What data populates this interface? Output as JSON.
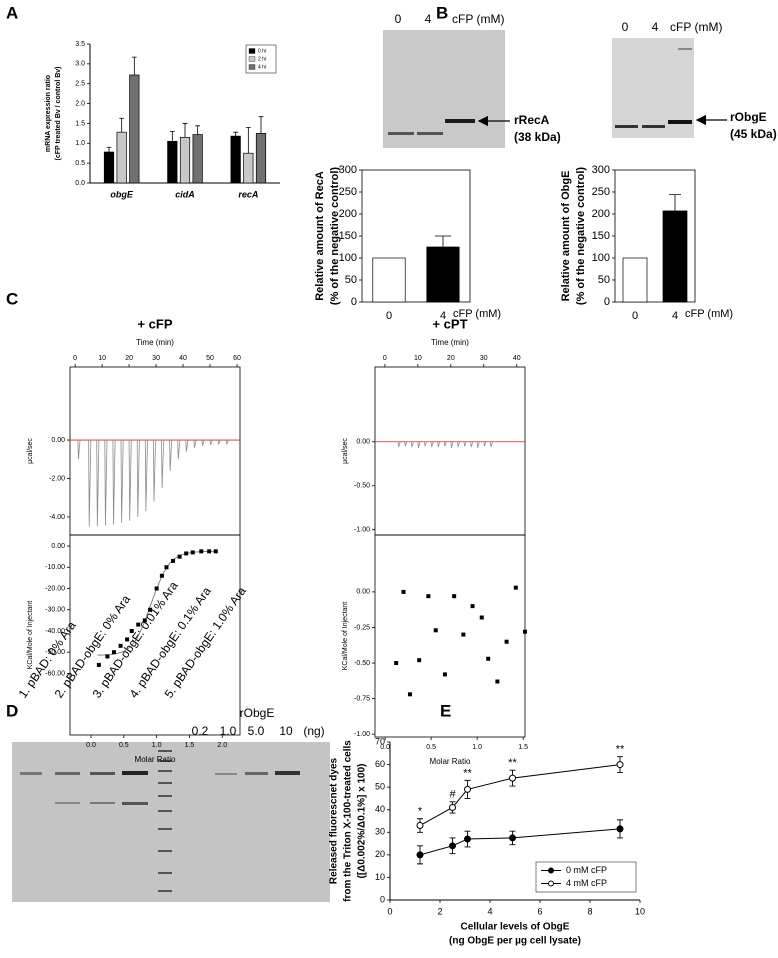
{
  "figure": {
    "panel_labels": [
      "A",
      "B",
      "C",
      "D",
      "E"
    ]
  },
  "blots": [
    {
      "lanes": [
        "0",
        "4",
        "cFP (mM)"
      ],
      "band": [
        "rRecA",
        "(38 kDa)"
      ]
    },
    {
      "lanes": [
        "0",
        "4",
        "cFP (mM)"
      ],
      "band": [
        "rObgE",
        "(45 kDa)"
      ]
    }
  ],
  "western": {
    "lanes": [
      "1. pBAD: 0% Ara",
      "2. pBAD-obgE: 0% Ara",
      "3. pBAD-obgE: 0.01% Ara",
      "4. pBAD-obgE: 0.1% Ara",
      "5. pBAD-obgE: 1.0% Ara"
    ],
    "standard": "rObgE",
    "standard_lanes": [
      "0.2",
      "1.0",
      "5.0",
      "10"
    ],
    "unit": "(ng)"
  },
  "chart_data": [
    {
      "type": "bar",
      "ylabel": [
        "mRNA expression ratio",
        "(cFP treated Bv / control Bv)"
      ],
      "categories": [
        "obgE",
        "cidA",
        "recA"
      ],
      "category_style": "italic",
      "series": [
        {
          "name": "0 hr",
          "color": "#000000",
          "values": [
            0.78,
            1.05,
            1.18
          ],
          "errors": [
            0.12,
            0.25,
            0.1
          ]
        },
        {
          "name": "2 hr",
          "color": "#c8c8c8",
          "values": [
            1.28,
            1.15,
            0.75
          ],
          "errors": [
            0.35,
            0.35,
            0.65
          ]
        },
        {
          "name": "4 hr",
          "color": "#707070",
          "values": [
            2.72,
            1.22,
            1.25
          ],
          "errors": [
            0.45,
            0.22,
            0.42
          ]
        }
      ],
      "ylim": [
        0,
        3.5
      ],
      "yticks": [
        {
          "value": 0,
          "label": "0.0"
        },
        0.5,
        {
          "value": 1,
          "label": "1.0"
        },
        1.5,
        {
          "value": 2,
          "label": "2.0"
        },
        2.5,
        {
          "value": 3,
          "label": "3.0"
        },
        3.5
      ],
      "legend": "upper right"
    },
    {
      "type": "bar",
      "ylabel": [
        "Relative amount of RecA",
        "(% of the negative control)"
      ],
      "xlabel": "cFP (mM)",
      "categories": [
        "0",
        "4"
      ],
      "values": [
        100,
        125
      ],
      "errors": [
        null,
        25
      ],
      "colors": [
        "#ffffff",
        "#000000"
      ],
      "ylim": [
        0,
        300
      ],
      "yticks": [
        0,
        50,
        100,
        150,
        200,
        250,
        300
      ]
    },
    {
      "type": "bar",
      "ylabel": [
        "Relative amount of ObgE",
        "(% of the negative control)"
      ],
      "xlabel": "cFP (mM)",
      "categories": [
        "0",
        "4"
      ],
      "values": [
        100,
        207
      ],
      "errors": [
        null,
        37
      ],
      "colors": [
        "#ffffff",
        "#000000"
      ],
      "ylim": [
        0,
        300
      ],
      "yticks": [
        0,
        50,
        100,
        150,
        200,
        250,
        300
      ]
    },
    {
      "type": "spike",
      "title": "+ cFP",
      "xlabel": "Time (min)",
      "ylabel": "µcal/sec",
      "x": [
        1,
        5,
        8,
        11,
        14,
        17,
        20,
        23,
        26,
        29,
        32,
        35,
        38,
        41,
        44,
        47,
        50,
        53,
        56
      ],
      "values": [
        -1.0,
        -4.5,
        -4.5,
        -4.45,
        -4.4,
        -4.3,
        -4.2,
        -4.0,
        -3.7,
        -3.2,
        -2.5,
        -1.6,
        -1.0,
        -0.6,
        -0.4,
        -0.3,
        -0.25,
        -0.2,
        -0.2
      ],
      "xlim": [
        -1.9,
        61.1
      ],
      "xticks": [
        0,
        10,
        20,
        30,
        40,
        50,
        60
      ],
      "ylim": [
        -4.94,
        3.8
      ],
      "yticks": [
        {
          "value": 0,
          "label": "0.00"
        },
        {
          "value": -2,
          "label": "-2.00"
        },
        {
          "value": -4,
          "label": "-4.00"
        }
      ],
      "color": "#8c8c8c",
      "baseline_color": "#e02020"
    },
    {
      "type": "scatter",
      "xlabel": "Molar Ratio",
      "ylabel": "KCal/Mole of Injectant",
      "x": [
        0.12,
        0.25,
        0.35,
        0.45,
        0.55,
        0.62,
        0.72,
        0.82,
        0.9,
        1.0,
        1.08,
        1.15,
        1.25,
        1.35,
        1.45,
        1.55,
        1.68,
        1.8,
        1.9
      ],
      "values": [
        -56,
        -52,
        -50,
        -47,
        -44,
        -40,
        -37,
        -35,
        -30,
        -20,
        -14,
        -10,
        -7,
        -5,
        -3.5,
        -3,
        -2.5,
        -2.5,
        -2.5
      ],
      "fit_x": [
        0.1,
        0.2,
        0.3,
        0.4,
        0.5,
        0.6,
        0.7,
        0.8,
        0.9,
        1.0,
        1.1,
        1.2,
        1.3,
        1.4,
        1.5,
        1.6,
        1.7,
        1.8,
        1.9
      ],
      "fit_values": [
        -51.4,
        -51.3,
        -51.1,
        -50.6,
        -49.6,
        -47.5,
        -43.6,
        -37.0,
        -28.5,
        -20.0,
        -12.8,
        -8.0,
        -5.3,
        -3.9,
        -3.2,
        -2.8,
        -2.6,
        -2.5,
        -2.5
      ],
      "xlim": [
        -0.32,
        2.27
      ],
      "xticks": [
        {
          "value": 0,
          "label": "0.0"
        },
        0.5,
        {
          "value": 1,
          "label": "1.0"
        },
        1.5,
        {
          "value": 2,
          "label": "2.0"
        }
      ],
      "ylim": [
        -89,
        5.2
      ],
      "yticks": [
        {
          "value": 0,
          "label": "0.00"
        },
        {
          "value": -10,
          "label": "-10.00"
        },
        {
          "value": -20,
          "label": "-20.00"
        },
        {
          "value": -30,
          "label": "-30.00"
        },
        {
          "value": -40,
          "label": "-40.00"
        },
        {
          "value": -50,
          "label": "-50.00"
        },
        {
          "value": -60,
          "label": "-60.00"
        }
      ],
      "color": "#000000",
      "fit_color": "#666666"
    },
    {
      "type": "spike",
      "title": "+ cPT",
      "xlabel": "Time (min)",
      "ylabel": "µcal/sec",
      "x": [
        4,
        6,
        8,
        10,
        12,
        14,
        16,
        18,
        20,
        22,
        24,
        26,
        28,
        30,
        32
      ],
      "values": [
        -0.06,
        -0.05,
        -0.06,
        -0.07,
        -0.05,
        -0.06,
        -0.06,
        -0.05,
        -0.07,
        -0.06,
        -0.05,
        -0.06,
        -0.07,
        -0.05,
        -0.06
      ],
      "xlim": [
        -3,
        42.5
      ],
      "xticks": [
        0,
        10,
        20,
        30,
        40
      ],
      "ylim": [
        -1.06,
        0.85
      ],
      "yticks": [
        {
          "value": 0,
          "label": "0.00"
        },
        {
          "value": -0.5,
          "label": "-0.50"
        },
        {
          "value": -1,
          "label": "-1.00"
        }
      ],
      "color": "#8c8c8c",
      "baseline_color": "#e02020"
    },
    {
      "type": "scatter",
      "xlabel": "Molar Ratio",
      "ylabel": "KCal/Mole of Injectant",
      "x": [
        0.12,
        0.2,
        0.27,
        0.37,
        0.47,
        0.55,
        0.65,
        0.75,
        0.85,
        0.95,
        1.05,
        1.12,
        1.22,
        1.32,
        1.42,
        1.52
      ],
      "values": [
        -0.5,
        0.0,
        -0.72,
        -0.48,
        -0.03,
        -0.27,
        -0.58,
        -0.03,
        -0.3,
        -0.1,
        -0.18,
        -0.47,
        -0.63,
        -0.35,
        0.03,
        -0.28
      ],
      "xlim": [
        -0.11,
        1.52
      ],
      "xticks": [
        {
          "value": 0,
          "label": "0.0"
        },
        0.5,
        {
          "value": 1,
          "label": "1.0"
        },
        1.5
      ],
      "ylim": [
        -1.02,
        0.4
      ],
      "yticks": [
        {
          "value": 0,
          "label": "0.00"
        },
        -0.25,
        {
          "value": -0.5,
          "label": "-0.50"
        },
        -0.75,
        {
          "value": -1,
          "label": "-1.00"
        }
      ],
      "color": "#000000"
    },
    {
      "type": "line",
      "ylabel": [
        "Released fluorescnet dyes",
        "from the Triton X-100-treated cells",
        "([Δ0.002%/Δ0.1%] x 100)"
      ],
      "xlabel": [
        "Cellular levels of ObgE",
        "(ng ObgE per µg cell lysate)"
      ],
      "x": [
        1.2,
        2.5,
        3.1,
        4.9,
        9.2
      ],
      "series": [
        {
          "name": "0 mM cFP",
          "color": "#000000",
          "marker": "filled",
          "values": [
            20,
            24,
            27,
            27.5,
            31.5
          ],
          "errors": [
            4,
            3.5,
            3.5,
            3,
            4
          ]
        },
        {
          "name": "4 mM cFP",
          "color": "#000000",
          "marker": "open",
          "values": [
            33,
            41,
            49,
            54,
            60
          ],
          "errors": [
            3,
            2.5,
            4,
            3.5,
            3.5
          ],
          "annotations": [
            "*",
            "#",
            "**",
            "**",
            "**"
          ]
        }
      ],
      "xlim": [
        0,
        10
      ],
      "xticks": [
        0,
        2,
        4,
        6,
        8,
        10
      ],
      "ylim": [
        0,
        70
      ],
      "yticks": [
        0,
        10,
        20,
        30,
        40,
        50,
        60,
        70
      ],
      "legend": "lower right"
    }
  ]
}
